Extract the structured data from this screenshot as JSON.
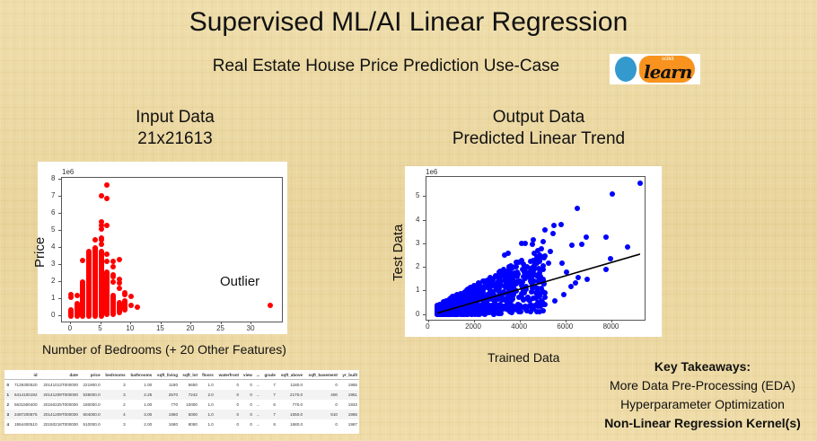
{
  "slide": {
    "title": "Supervised ML/AI Linear Regression",
    "subtitle": "Real Estate House Price Prediction Use-Case",
    "logo": {
      "icon": "scikit-learn-logo",
      "small_text": "scikit",
      "big_text": "learn",
      "blue": "#3499cd",
      "orange": "#f7931e"
    }
  },
  "left_section": {
    "heading_line1": "Input Data",
    "heading_line2": "21x21613",
    "x_caption": "Number of Bedrooms (+ 20 Other Features)"
  },
  "right_section": {
    "heading_line1": "Output Data",
    "heading_line2": "Predicted Linear Trend",
    "x_caption": "Trained Data"
  },
  "takeaways": {
    "title": "Key Takeaways:",
    "items": [
      "More Data Pre-Processing (EDA)",
      "Hyperparameter Optimization",
      "Non-Linear Regression Kernel(s)"
    ]
  },
  "table": {
    "columns": [
      "",
      "id",
      "date",
      "price",
      "bedrooms",
      "bathrooms",
      "sqft_living",
      "sqft_lot",
      "floors",
      "waterfront",
      "view",
      "...",
      "grade",
      "sqft_above",
      "sqft_basement",
      "yr_built"
    ],
    "rows": [
      [
        "0",
        "7129300520",
        "20141013T000000",
        "221900.0",
        "3",
        "1.00",
        "1180",
        "5650",
        "1.0",
        "0",
        "0",
        "...",
        "7",
        "1180.0",
        "0",
        "1955"
      ],
      [
        "1",
        "6414100192",
        "20141209T000000",
        "538000.0",
        "3",
        "2.25",
        "2570",
        "7242",
        "2.0",
        "0",
        "0",
        "...",
        "7",
        "2170.0",
        "400",
        "1951"
      ],
      [
        "2",
        "5631500400",
        "20150225T000000",
        "180000.0",
        "2",
        "1.00",
        "770",
        "10000",
        "1.0",
        "0",
        "0",
        "...",
        "6",
        "770.0",
        "0",
        "1933"
      ],
      [
        "3",
        "2487200875",
        "20141209T000000",
        "604000.0",
        "4",
        "3.00",
        "1960",
        "5000",
        "1.0",
        "0",
        "0",
        "...",
        "7",
        "1050.0",
        "910",
        "1965"
      ],
      [
        "4",
        "1954400510",
        "20150218T000000",
        "510000.0",
        "3",
        "2.00",
        "1680",
        "8080",
        "1.0",
        "0",
        "0",
        "...",
        "8",
        "1680.0",
        "0",
        "1987"
      ]
    ]
  },
  "chart_data": [
    {
      "type": "scatter",
      "title": "",
      "xlabel": "Number of Bedrooms (+ 20 Other Features)",
      "ylabel": "Price",
      "y_offset_label": "1e6",
      "xlim": [
        -1.5,
        35
      ],
      "ylim": [
        -0.3,
        8.1
      ],
      "x_ticks": [
        0,
        5,
        10,
        15,
        20,
        25,
        30
      ],
      "y_ticks": [
        0,
        1,
        2,
        3,
        4,
        5,
        6,
        7,
        8
      ],
      "color": "#ff0000",
      "annotation": "Outlier",
      "columns_range": [
        {
          "x": 0,
          "min": 0.0,
          "max": 0.4
        },
        {
          "x": 1,
          "min": 0.0,
          "max": 0.75
        },
        {
          "x": 2,
          "min": 0.0,
          "max": 2.0
        },
        {
          "x": 3,
          "min": 0.0,
          "max": 3.8
        },
        {
          "x": 4,
          "min": 0.0,
          "max": 4.0
        },
        {
          "x": 5,
          "min": 0.0,
          "max": 3.8
        },
        {
          "x": 6,
          "min": 0.1,
          "max": 2.6
        },
        {
          "x": 7,
          "min": 0.1,
          "max": 1.2
        },
        {
          "x": 8,
          "min": 0.2,
          "max": 0.8
        },
        {
          "x": 9,
          "min": 0.4,
          "max": 0.9
        }
      ],
      "points": [
        [
          0,
          1.3
        ],
        [
          0,
          1.1
        ],
        [
          1,
          1.2
        ],
        [
          2,
          3.25
        ],
        [
          4,
          4.5
        ],
        [
          5,
          7.05
        ],
        [
          5,
          5.55
        ],
        [
          5,
          5.3
        ],
        [
          5,
          5.1
        ],
        [
          5,
          4.6
        ],
        [
          5,
          4.5
        ],
        [
          5,
          4.2
        ],
        [
          6,
          7.7
        ],
        [
          6,
          6.9
        ],
        [
          6,
          5.3
        ],
        [
          6,
          3.65
        ],
        [
          6,
          3.2
        ],
        [
          7,
          3.2
        ],
        [
          7,
          2.9
        ],
        [
          7,
          2.45
        ],
        [
          7,
          2.3
        ],
        [
          7,
          2.0
        ],
        [
          8,
          3.3
        ],
        [
          8,
          2.15
        ],
        [
          8,
          1.95
        ],
        [
          8,
          1.65
        ],
        [
          9,
          1.4
        ],
        [
          9,
          1.25
        ],
        [
          10,
          1.15
        ],
        [
          10,
          0.65
        ],
        [
          11,
          0.55
        ],
        [
          33,
          0.65
        ]
      ]
    },
    {
      "type": "scatter",
      "title": "",
      "xlabel": "Trained Data",
      "ylabel": "Test Data",
      "y_offset_label": "1e6",
      "xlim": [
        -100,
        9400
      ],
      "ylim": [
        -0.2,
        5.85
      ],
      "x_ticks": [
        0,
        2000,
        4000,
        6000,
        8000
      ],
      "y_ticks": [
        0,
        1,
        2,
        3,
        4,
        5
      ],
      "color": "#0000ff",
      "regression_line": {
        "x": [
          370,
          9200
        ],
        "y": [
          0.08,
          2.58
        ],
        "color": "#000000"
      },
      "points": [
        [
          9200,
          5.6
        ],
        [
          8000,
          5.12
        ],
        [
          6450,
          4.5
        ],
        [
          5750,
          3.85
        ],
        [
          5450,
          3.8
        ],
        [
          5050,
          3.6
        ],
        [
          5400,
          3.45
        ],
        [
          6850,
          3.3
        ],
        [
          7700,
          3.3
        ],
        [
          6250,
          2.95
        ],
        [
          6650,
          3.0
        ],
        [
          8650,
          2.9
        ],
        [
          7900,
          2.4
        ],
        [
          7700,
          1.93
        ],
        [
          6900,
          1.5
        ],
        [
          6500,
          1.6
        ],
        [
          4050,
          3.05
        ],
        [
          4200,
          3.05
        ],
        [
          4550,
          3.2
        ],
        [
          4500,
          3.0
        ],
        [
          3300,
          2.55
        ],
        [
          3450,
          2.6
        ],
        [
          5000,
          3.1
        ],
        [
          5300,
          2.7
        ],
        [
          5200,
          2.2
        ],
        [
          5800,
          2.2
        ],
        [
          6000,
          1.8
        ],
        [
          6400,
          1.35
        ],
        [
          6200,
          1.2
        ],
        [
          5050,
          0.45
        ],
        [
          5500,
          0.6
        ],
        [
          5900,
          0.85
        ]
      ],
      "cloud_note": "dense blue point cloud spanning x~400-5000, y~0-2.5 following upward trend"
    }
  ]
}
